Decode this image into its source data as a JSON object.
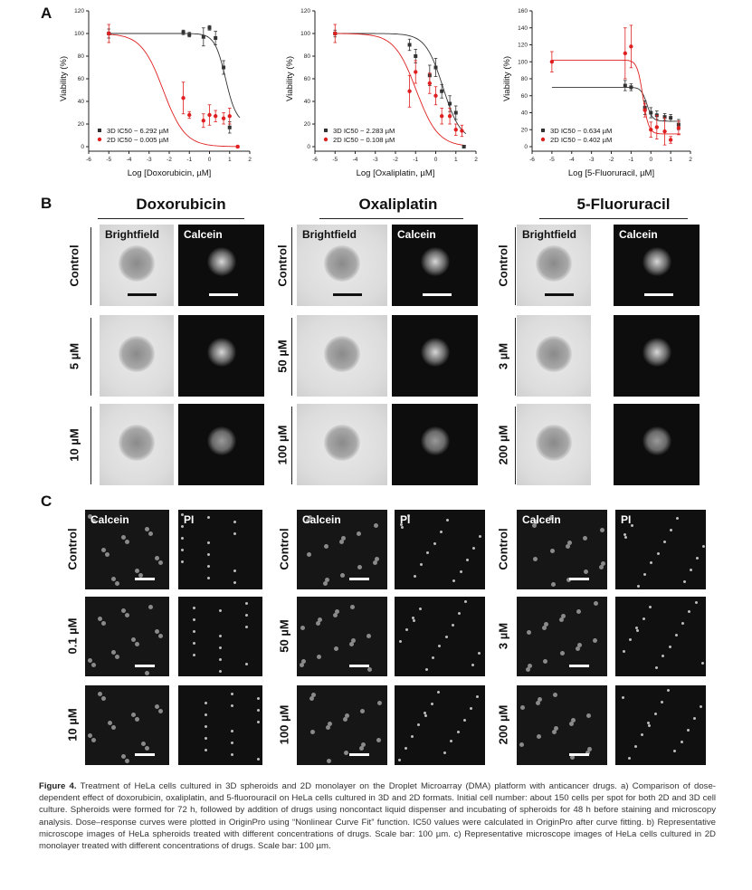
{
  "panels": {
    "a": "A",
    "b": "B",
    "c": "C"
  },
  "chart_data": [
    {
      "type": "scatter",
      "xlabel": "Log [Doxorubicin, µM]",
      "ylabel": "Viability (%)",
      "xlim": [
        -6,
        2
      ],
      "ylim": [
        0,
        120
      ],
      "xticks": [
        -6,
        -5,
        -4,
        -3,
        -2,
        -1,
        0,
        1,
        2
      ],
      "yticks": [
        0,
        20,
        40,
        60,
        80,
        100,
        120
      ],
      "legend_position": "bottom-left",
      "series": [
        {
          "name": "3D IC50 ~ 6.292 µM",
          "color": "#333333",
          "x": [
            -5,
            -1.3,
            -1,
            -0.3,
            0,
            0.3,
            0.7,
            1
          ],
          "y": [
            100,
            101,
            99,
            97,
            105,
            96,
            70,
            17
          ],
          "err": [
            4,
            2,
            2,
            8,
            2,
            6,
            6,
            5
          ]
        },
        {
          "name": "2D IC50 ~ 0.005 µM",
          "color": "#e02020",
          "x": [
            -5,
            -1.3,
            -1,
            -0.3,
            0,
            0.3,
            0.7,
            1,
            1.4
          ],
          "y": [
            100,
            43,
            28,
            23,
            28,
            27,
            25,
            27,
            0
          ],
          "err": [
            8,
            14,
            3,
            6,
            9,
            5,
            5,
            7,
            1
          ]
        }
      ]
    },
    {
      "type": "scatter",
      "xlabel": "Log [Oxaliplatin, µM]",
      "ylabel": "Viability (%)",
      "xlim": [
        -6,
        2
      ],
      "ylim": [
        0,
        120
      ],
      "xticks": [
        -6,
        -5,
        -4,
        -3,
        -2,
        -1,
        0,
        1,
        2
      ],
      "yticks": [
        0,
        20,
        40,
        60,
        80,
        100,
        120
      ],
      "legend_position": "bottom-left",
      "series": [
        {
          "name": "3D IC50 ~ 2.283 µM",
          "color": "#333333",
          "x": [
            -5,
            -1.3,
            -1,
            -0.3,
            0,
            0.3,
            0.7,
            1,
            1.4
          ],
          "y": [
            100,
            90,
            80,
            63,
            70,
            49,
            38,
            30,
            0
          ],
          "err": [
            3,
            5,
            6,
            9,
            8,
            6,
            7,
            6,
            1
          ]
        },
        {
          "name": "2D IC50 ~ 0.108 µM",
          "color": "#e02020",
          "x": [
            -5,
            -1.3,
            -1,
            -0.3,
            0,
            0.3,
            0.7,
            1,
            1.3
          ],
          "y": [
            100,
            49,
            66,
            56,
            45,
            27,
            27,
            15,
            14
          ],
          "err": [
            8,
            14,
            10,
            9,
            8,
            7,
            7,
            5,
            5
          ]
        }
      ]
    },
    {
      "type": "scatter",
      "xlabel": "Log [5-Fluoruracil, µM]",
      "ylabel": "Viability (%)",
      "xlim": [
        -6,
        2
      ],
      "ylim": [
        0,
        160
      ],
      "xticks": [
        -6,
        -5,
        -4,
        -3,
        -2,
        -1,
        0,
        1,
        2
      ],
      "yticks": [
        0,
        20,
        40,
        60,
        80,
        100,
        120,
        140,
        160
      ],
      "legend_position": "bottom-left",
      "series": [
        {
          "name": "3D IC50 ~ 0.634 µM",
          "color": "#333333",
          "x": [
            -1.3,
            -1,
            -0.3,
            0,
            0.3,
            0.7,
            1,
            1.4
          ],
          "y": [
            72,
            70,
            46,
            40,
            37,
            35,
            34,
            26
          ],
          "err": [
            6,
            4,
            8,
            6,
            5,
            4,
            4,
            6
          ]
        },
        {
          "name": "2D IC50 ~ 0.402 µM",
          "color": "#e02020",
          "x": [
            -5,
            -1.3,
            -1,
            -0.3,
            0,
            0.3,
            0.7,
            1,
            1.4
          ],
          "y": [
            100,
            110,
            118,
            43,
            20,
            23,
            18,
            8,
            22
          ],
          "err": [
            12,
            30,
            25,
            8,
            9,
            14,
            16,
            4,
            8
          ]
        }
      ]
    }
  ],
  "fit_curves": [
    {
      "s3d": {
        "top": 100,
        "bottom": 20,
        "logic50": 0.8,
        "hill": 1.6
      },
      "s2d": {
        "top": 100,
        "bottom": 0,
        "logic50": -2.3,
        "hill": 0.8
      }
    },
    {
      "s3d": {
        "top": 100,
        "bottom": 5,
        "logic50": 0.36,
        "hill": 1.0
      },
      "s2d": {
        "top": 100,
        "bottom": 0,
        "logic50": -0.97,
        "hill": 0.8
      }
    },
    {
      "s3d": {
        "top": 70,
        "bottom": 30,
        "logic50": -0.2,
        "hill": 3.0
      },
      "s2d": {
        "top": 102,
        "bottom": 15,
        "logic50": -0.4,
        "hill": 3.0
      }
    }
  ],
  "section_b": {
    "drugs": [
      "Doxorubicin",
      "Oxaliplatin",
      "5-Fluoruracil"
    ],
    "headers": [
      "Brightfield",
      "Calcein"
    ],
    "rows": [
      [
        "Control",
        "5 µM",
        "10 µM"
      ],
      [
        "Control",
        "50 µM",
        "100 µM"
      ],
      [
        "Control",
        "3 µM",
        "200 µM"
      ]
    ]
  },
  "section_c": {
    "headers": [
      "Calcein",
      "PI"
    ],
    "rows": [
      [
        "Control",
        "0.1 µM",
        "10 µM"
      ],
      [
        "Control",
        "50 µM",
        "100 µM"
      ],
      [
        "Control",
        "3 µM",
        "200 µM"
      ]
    ]
  },
  "caption": {
    "label": "Figure 4.",
    "text": "Treatment of HeLa cells cultured in 3D spheroids and 2D monolayer on the Droplet Microarray (DMA) platform with anticancer drugs. a) Comparison of dose-dependent effect of doxorubicin, oxaliplatin, and 5-fluorouracil on HeLa cells cultured in 3D and 2D formats. Initial cell number: about 150 cells per spot for both 2D and 3D cell culture. Spheroids were formed for 72 h, followed by addition of drugs using noncontact liquid dispenser and incubating of spheroids for 48 h before staining and microscopy analysis. Dose–response curves were plotted in OriginPro using “Nonlinear Curve Fit” function. IC50 values were calculated in OriginPro after curve fitting. b) Representative microscope images of HeLa spheroids treated with different concentrations of drugs. Scale bar: 100 µm. c) Representative microscope images of HeLa cells cultured in 2D monolayer treated with different concentrations of drugs. Scale bar: 100 µm."
  }
}
